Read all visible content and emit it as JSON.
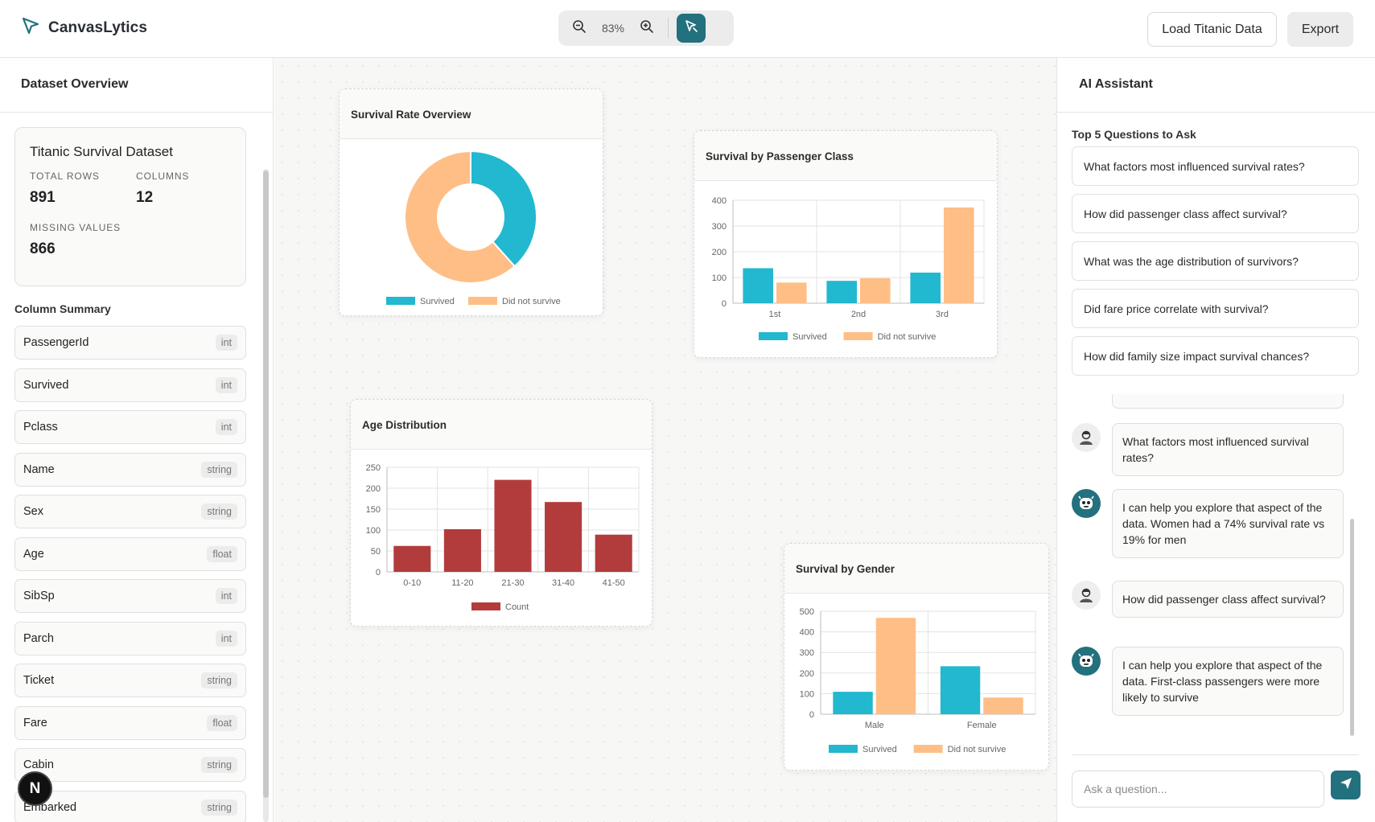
{
  "app": {
    "name": "CanvasLytics",
    "logo_icon": "cursor-arrow-icon"
  },
  "toolbar": {
    "zoom_level": "83%",
    "zoom_out_icon": "zoom-out-icon",
    "zoom_in_icon": "zoom-in-icon",
    "select_icon": "select-pointer-icon",
    "load_label": "Load Titanic Data",
    "export_label": "Export"
  },
  "colors": {
    "accent": "#23707e",
    "survived": "#22b8cf",
    "not_survived": "#ffbe86",
    "count": "#b23c3c"
  },
  "left": {
    "title": "Dataset Overview",
    "dataset": {
      "name": "Titanic Survival Dataset",
      "total_rows_label": "TOTAL ROWS",
      "total_rows": "891",
      "columns_label": "COLUMNS",
      "columns": "12",
      "missing_label": "MISSING VALUES",
      "missing": "866"
    },
    "summary_label": "Column Summary",
    "columns": [
      {
        "name": "PassengerId",
        "type": "int"
      },
      {
        "name": "Survived",
        "type": "int"
      },
      {
        "name": "Pclass",
        "type": "int"
      },
      {
        "name": "Name",
        "type": "string"
      },
      {
        "name": "Sex",
        "type": "string"
      },
      {
        "name": "Age",
        "type": "float"
      },
      {
        "name": "SibSp",
        "type": "int"
      },
      {
        "name": "Parch",
        "type": "int"
      },
      {
        "name": "Ticket",
        "type": "string"
      },
      {
        "name": "Fare",
        "type": "float"
      },
      {
        "name": "Cabin",
        "type": "string"
      },
      {
        "name": "Embarked",
        "type": "string"
      }
    ],
    "badge": "N"
  },
  "canvas": {
    "cards": [
      {
        "title": "Survival Rate Overview"
      },
      {
        "title": "Survival by Passenger Class"
      },
      {
        "title": "Age Distribution"
      },
      {
        "title": "Survival by Gender"
      }
    ]
  },
  "chart_data": [
    {
      "type": "pie",
      "title": "Survival Rate Overview",
      "labels": [
        "Survived",
        "Did not survive"
      ],
      "values": [
        342,
        549
      ],
      "donut": true,
      "legend": "bottom"
    },
    {
      "type": "bar",
      "title": "Survival by Passenger Class",
      "categories": [
        "1st",
        "2nd",
        "3rd"
      ],
      "series": [
        {
          "name": "Survived",
          "values": [
            136,
            87,
            119
          ]
        },
        {
          "name": "Did not survive",
          "values": [
            80,
            97,
            372
          ]
        }
      ],
      "ylim": [
        0,
        400
      ],
      "yticks": [
        0,
        100,
        200,
        300,
        400
      ],
      "grid": true,
      "legend": "bottom"
    },
    {
      "type": "bar",
      "title": "Age Distribution",
      "categories": [
        "0-10",
        "11-20",
        "21-30",
        "31-40",
        "41-50"
      ],
      "series": [
        {
          "name": "Count",
          "values": [
            62,
            102,
            220,
            167,
            89
          ]
        }
      ],
      "ylim": [
        0,
        250
      ],
      "yticks": [
        0,
        50,
        100,
        150,
        200,
        250
      ],
      "grid": true,
      "legend": "bottom"
    },
    {
      "type": "bar",
      "title": "Survival by Gender",
      "categories": [
        "Male",
        "Female"
      ],
      "series": [
        {
          "name": "Survived",
          "values": [
            109,
            233
          ]
        },
        {
          "name": "Did not survive",
          "values": [
            468,
            81
          ]
        }
      ],
      "ylim": [
        0,
        500
      ],
      "yticks": [
        0,
        100,
        200,
        300,
        400,
        500
      ],
      "grid": true,
      "legend": "bottom"
    }
  ],
  "right": {
    "title": "AI Assistant",
    "questions_label": "Top 5 Questions to Ask",
    "questions": [
      "What factors most influenced survival rates?",
      "How did passenger class affect survival?",
      "What was the age distribution of survivors?",
      "Did fare price correlate with survival?",
      "How did family size impact survival chances?"
    ],
    "messages": [
      {
        "role": "user",
        "text": "What factors most influenced survival rates?"
      },
      {
        "role": "bot",
        "text": "I can help you explore that aspect of the data. Women had a 74% survival rate vs 19% for men"
      },
      {
        "role": "user",
        "text": "How did passenger class affect survival?"
      },
      {
        "role": "bot",
        "text": "I can help you explore that aspect of the data. First-class passengers were more likely to survive"
      }
    ],
    "input_placeholder": "Ask a question...",
    "input_value": "",
    "send_icon": "send-icon"
  }
}
